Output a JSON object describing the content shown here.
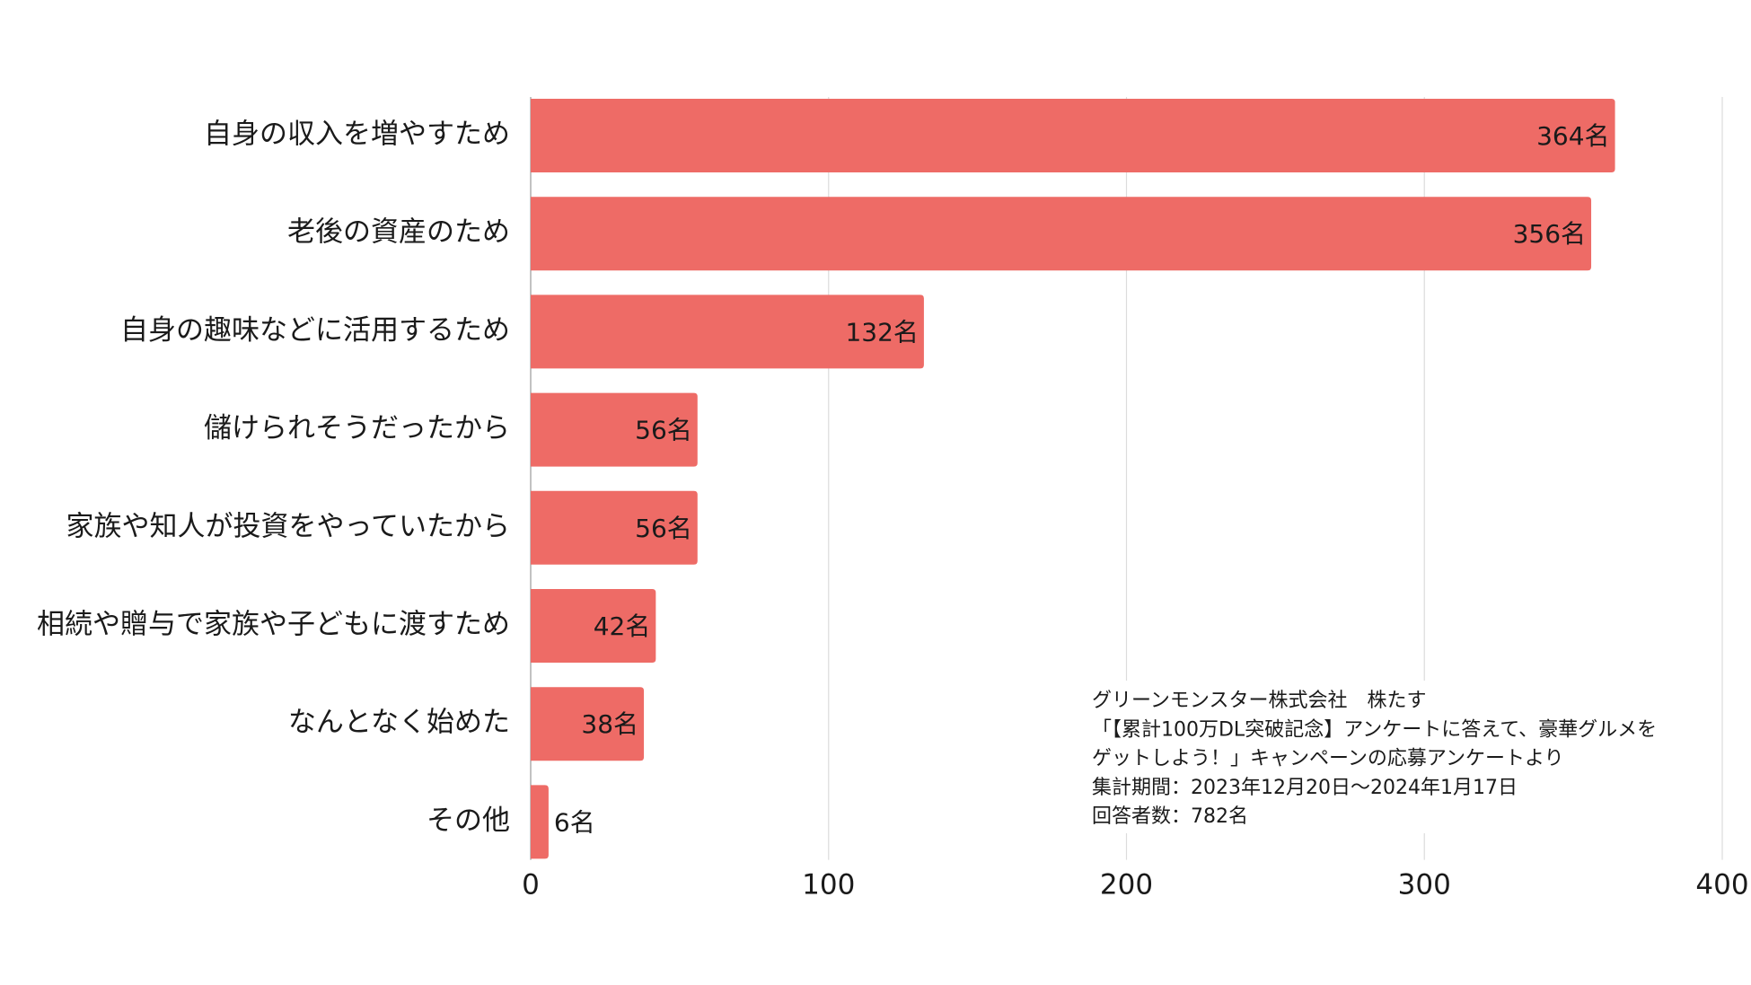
{
  "chart_data": {
    "type": "bar",
    "orientation": "horizontal",
    "categories": [
      "自身の収入を増やすため",
      "老後の資産のため",
      "自身の趣味などに活用するため",
      "儲けられそうだったから",
      "家族や知人が投資をやっていたから",
      "相続や贈与で家族や子どもに渡すため",
      "なんとなく始めた",
      "その他"
    ],
    "values": [
      364,
      356,
      132,
      56,
      56,
      42,
      38,
      6
    ],
    "value_labels": [
      "364名",
      "356名",
      "132名",
      "56名",
      "56名",
      "42名",
      "38名",
      "6名"
    ],
    "color": "#ee6b66",
    "xlim": [
      0,
      400
    ],
    "xticks": [
      0,
      100,
      200,
      300,
      400
    ],
    "grid": true,
    "annotations": [
      "グリーンモンスター株式会社　株たす",
      "「【累計100万DL突破記念】アンケートに答えて、豪華グルメを",
      "ゲットしよう！」キャンペーンの応募アンケートより",
      "集計期間：2023年12月20日〜2024年1月17日",
      "回答者数：782名"
    ]
  }
}
